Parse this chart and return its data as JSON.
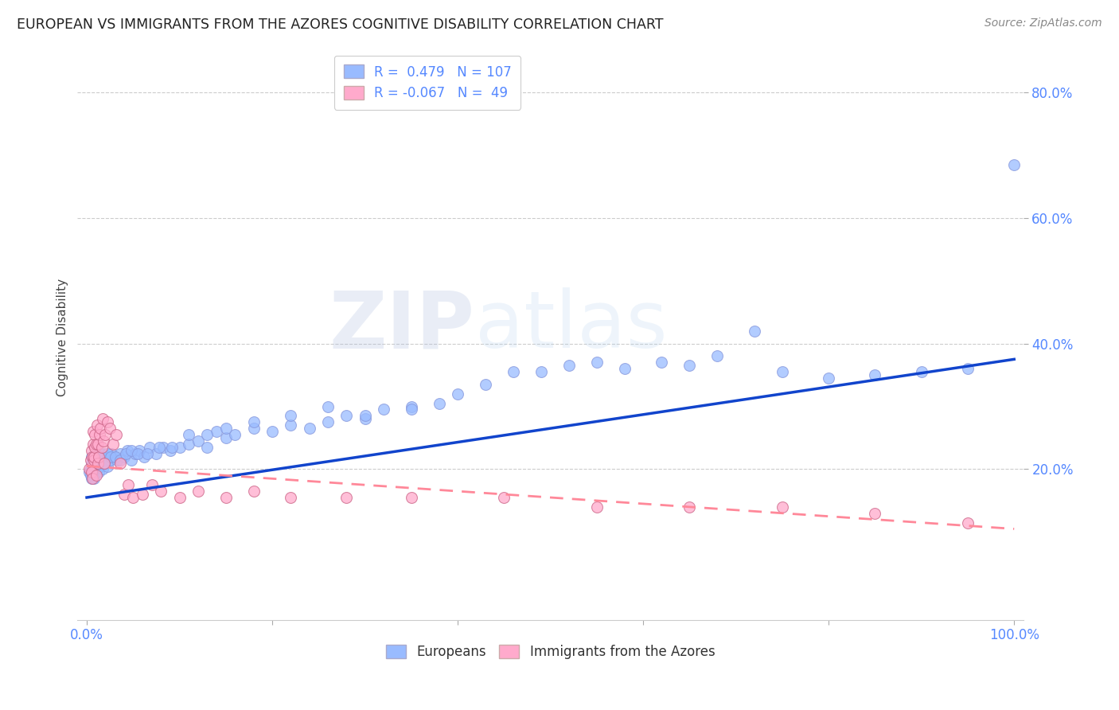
{
  "title": "EUROPEAN VS IMMIGRANTS FROM THE AZORES COGNITIVE DISABILITY CORRELATION CHART",
  "source": "Source: ZipAtlas.com",
  "tick_color": "#5588ff",
  "ylabel": "Cognitive Disability",
  "xlim": [
    0.0,
    1.0
  ],
  "xtick_labels_show": [
    "0.0%",
    "100.0%"
  ],
  "xtick_vals_show": [
    0.0,
    1.0
  ],
  "ytick_labels": [
    "20.0%",
    "40.0%",
    "60.0%",
    "80.0%"
  ],
  "ytick_values": [
    0.2,
    0.4,
    0.6,
    0.8
  ],
  "blue_color": "#99bbff",
  "pink_color": "#ffaacc",
  "line_blue": "#1144cc",
  "line_pink": "#ff8899",
  "watermark_zip": "ZIP",
  "watermark_atlas": "atlas",
  "legend_R_blue": "0.479",
  "legend_N_blue": "107",
  "legend_R_pink": "-0.067",
  "legend_N_pink": "49",
  "blue_x": [
    0.003,
    0.004,
    0.005,
    0.005,
    0.005,
    0.006,
    0.006,
    0.007,
    0.007,
    0.008,
    0.008,
    0.009,
    0.009,
    0.01,
    0.01,
    0.01,
    0.011,
    0.011,
    0.012,
    0.012,
    0.013,
    0.013,
    0.014,
    0.015,
    0.015,
    0.016,
    0.017,
    0.018,
    0.019,
    0.02,
    0.021,
    0.022,
    0.023,
    0.025,
    0.027,
    0.03,
    0.033,
    0.036,
    0.04,
    0.044,
    0.048,
    0.052,
    0.057,
    0.062,
    0.068,
    0.075,
    0.082,
    0.09,
    0.1,
    0.11,
    0.12,
    0.13,
    0.14,
    0.15,
    0.16,
    0.18,
    0.2,
    0.22,
    0.24,
    0.26,
    0.28,
    0.3,
    0.32,
    0.35,
    0.38,
    0.4,
    0.43,
    0.46,
    0.49,
    0.52,
    0.55,
    0.58,
    0.62,
    0.65,
    0.68,
    0.72,
    0.75,
    0.8,
    0.85,
    0.9,
    0.95,
    1.0,
    0.004,
    0.006,
    0.008,
    0.01,
    0.012,
    0.015,
    0.018,
    0.022,
    0.026,
    0.031,
    0.036,
    0.042,
    0.048,
    0.055,
    0.065,
    0.078,
    0.092,
    0.11,
    0.13,
    0.15,
    0.18,
    0.22,
    0.26,
    0.3,
    0.35
  ],
  "blue_y": [
    0.195,
    0.2,
    0.185,
    0.21,
    0.22,
    0.19,
    0.215,
    0.2,
    0.205,
    0.195,
    0.215,
    0.2,
    0.22,
    0.195,
    0.21,
    0.225,
    0.2,
    0.215,
    0.205,
    0.22,
    0.195,
    0.21,
    0.215,
    0.205,
    0.22,
    0.215,
    0.2,
    0.225,
    0.21,
    0.22,
    0.215,
    0.205,
    0.22,
    0.215,
    0.225,
    0.22,
    0.215,
    0.225,
    0.22,
    0.23,
    0.215,
    0.225,
    0.23,
    0.22,
    0.235,
    0.225,
    0.235,
    0.23,
    0.235,
    0.24,
    0.245,
    0.235,
    0.26,
    0.25,
    0.255,
    0.265,
    0.26,
    0.27,
    0.265,
    0.275,
    0.285,
    0.28,
    0.295,
    0.3,
    0.305,
    0.32,
    0.335,
    0.355,
    0.355,
    0.365,
    0.37,
    0.36,
    0.37,
    0.365,
    0.38,
    0.42,
    0.355,
    0.345,
    0.35,
    0.355,
    0.36,
    0.685,
    0.19,
    0.195,
    0.185,
    0.215,
    0.21,
    0.225,
    0.21,
    0.225,
    0.22,
    0.22,
    0.215,
    0.225,
    0.23,
    0.225,
    0.225,
    0.235,
    0.235,
    0.255,
    0.255,
    0.265,
    0.275,
    0.285,
    0.3,
    0.285,
    0.295
  ],
  "pink_x": [
    0.003,
    0.004,
    0.005,
    0.005,
    0.006,
    0.006,
    0.007,
    0.007,
    0.008,
    0.008,
    0.009,
    0.009,
    0.01,
    0.01,
    0.011,
    0.012,
    0.012,
    0.013,
    0.014,
    0.015,
    0.016,
    0.017,
    0.018,
    0.019,
    0.02,
    0.022,
    0.025,
    0.028,
    0.032,
    0.036,
    0.04,
    0.045,
    0.05,
    0.06,
    0.07,
    0.08,
    0.1,
    0.12,
    0.15,
    0.18,
    0.22,
    0.28,
    0.35,
    0.45,
    0.55,
    0.65,
    0.75,
    0.85,
    0.95
  ],
  "pink_y": [
    0.2,
    0.215,
    0.195,
    0.23,
    0.22,
    0.185,
    0.24,
    0.26,
    0.215,
    0.22,
    0.255,
    0.235,
    0.19,
    0.24,
    0.27,
    0.21,
    0.24,
    0.22,
    0.255,
    0.265,
    0.235,
    0.28,
    0.245,
    0.21,
    0.255,
    0.275,
    0.265,
    0.24,
    0.255,
    0.21,
    0.16,
    0.175,
    0.155,
    0.16,
    0.175,
    0.165,
    0.155,
    0.165,
    0.155,
    0.165,
    0.155,
    0.155,
    0.155,
    0.155,
    0.14,
    0.14,
    0.14,
    0.13,
    0.115
  ],
  "background_color": "#ffffff",
  "grid_color": "#cccccc",
  "blue_line_start_y": 0.155,
  "blue_line_end_y": 0.375,
  "pink_line_start_y": 0.205,
  "pink_line_end_y": 0.105
}
